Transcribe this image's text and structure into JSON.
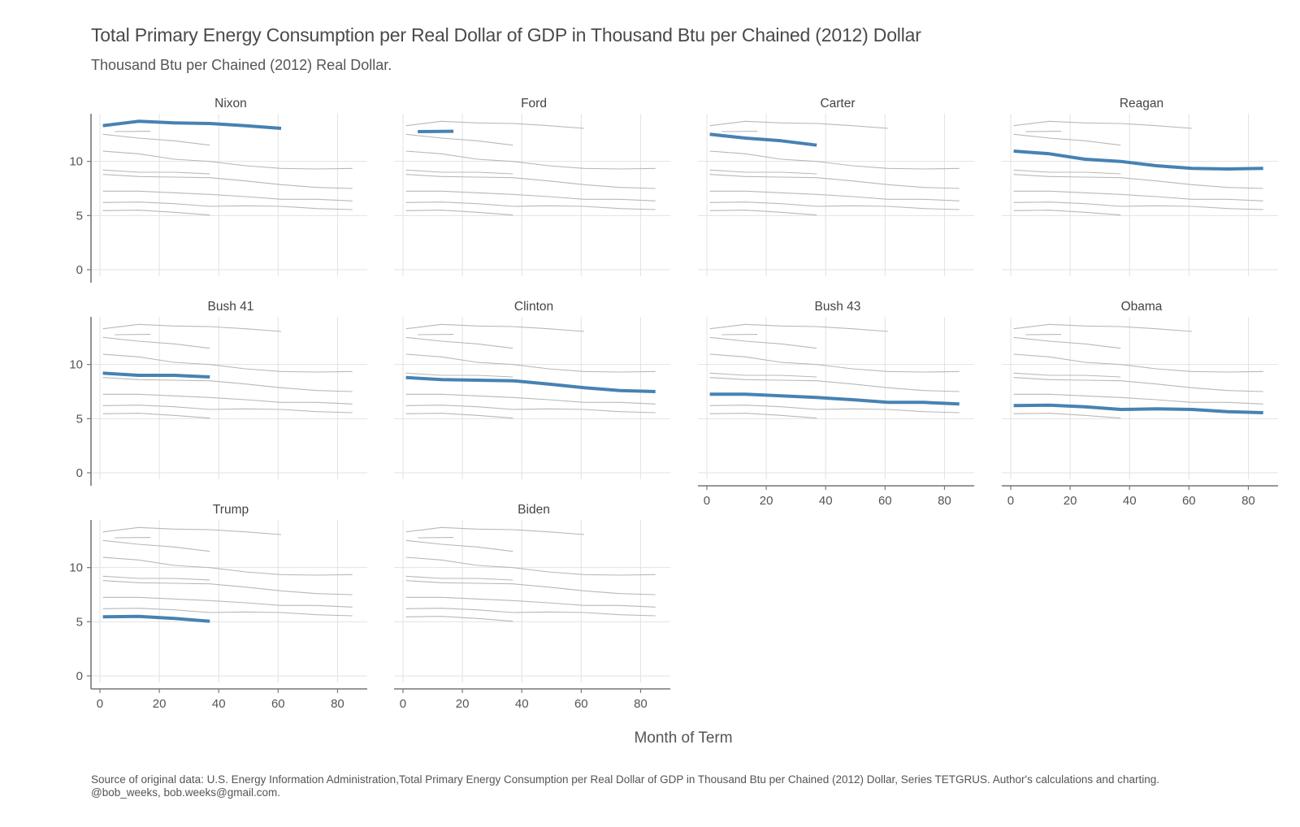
{
  "title": "Total Primary Energy Consumption per Real Dollar of GDP in Thousand Btu per Chained (2012) Dollar",
  "subtitle": "Thousand Btu per Chained (2012) Real Dollar.",
  "caption": "Source of original data: U.S. Energy Information Administration,Total Primary Energy Consumption per Real Dollar of GDP in Thousand Btu per Chained (2012) Dollar, Series TETGRUS. Author's calculations and charting. @bob_weeks, bob.weeks@gmail.com.",
  "colors": {
    "highlight": "#4682b4",
    "background_lines": "#b8b8b8",
    "grid": "#e2e2e2",
    "axis": "#777777"
  },
  "chart_data": {
    "type": "line",
    "facet_by": "president",
    "xlabel": "Month of Term",
    "ylabel": "",
    "xlim": [
      -3,
      90
    ],
    "ylim": [
      -0.6,
      14.4
    ],
    "x_ticks": [
      0,
      20,
      40,
      60,
      80
    ],
    "y_ticks": [
      0,
      5,
      10
    ],
    "grid": true,
    "series": [
      {
        "name": "Nixon",
        "x": [
          1,
          13,
          25,
          37,
          49,
          61
        ],
        "values": [
          13.3,
          13.7,
          13.55,
          13.5,
          13.3,
          13.05
        ]
      },
      {
        "name": "Ford",
        "x": [
          5,
          17
        ],
        "values": [
          12.75,
          12.78
        ]
      },
      {
        "name": "Carter",
        "x": [
          1,
          13,
          25,
          37
        ],
        "values": [
          12.5,
          12.15,
          11.9,
          11.5
        ]
      },
      {
        "name": "Reagan",
        "x": [
          1,
          13,
          25,
          37,
          49,
          61,
          73,
          85
        ],
        "values": [
          10.95,
          10.7,
          10.2,
          10.0,
          9.6,
          9.35,
          9.3,
          9.35
        ]
      },
      {
        "name": "Bush 41",
        "x": [
          1,
          13,
          25,
          37
        ],
        "values": [
          9.2,
          9.0,
          9.0,
          8.85
        ]
      },
      {
        "name": "Clinton",
        "x": [
          1,
          13,
          25,
          37,
          49,
          61,
          73,
          85
        ],
        "values": [
          8.8,
          8.6,
          8.55,
          8.5,
          8.2,
          7.85,
          7.6,
          7.5
        ]
      },
      {
        "name": "Bush 43",
        "x": [
          1,
          13,
          25,
          37,
          49,
          61,
          73,
          85
        ],
        "values": [
          7.25,
          7.25,
          7.1,
          6.95,
          6.75,
          6.5,
          6.5,
          6.35
        ]
      },
      {
        "name": "Obama",
        "x": [
          1,
          13,
          25,
          37,
          49,
          61,
          73,
          85
        ],
        "values": [
          6.2,
          6.25,
          6.1,
          5.85,
          5.9,
          5.85,
          5.65,
          5.55
        ]
      },
      {
        "name": "Trump",
        "x": [
          1,
          13,
          25,
          37
        ],
        "values": [
          5.45,
          5.5,
          5.3,
          5.05
        ]
      },
      {
        "name": "Biden",
        "x": [],
        "values": []
      }
    ]
  }
}
